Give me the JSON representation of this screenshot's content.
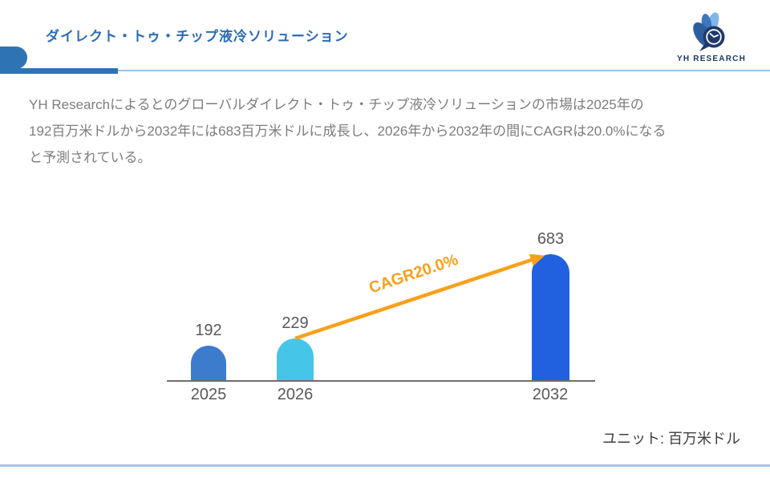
{
  "header": {
    "title": "ダイレクト・トゥ・チップ液冷ソリューション",
    "logo_text": "YH RESEARCH"
  },
  "description": {
    "lines": [
      "YH Researchによるとのグローバルダイレクト・トゥ・チップ液冷ソリューションの市場は2025年の",
      "192百万米ドルから2032年には683百万米ドルに成長し、2026年から2032年の間にCAGRは20.0%になる",
      "と予測されている。"
    ]
  },
  "chart_data": {
    "type": "bar",
    "categories": [
      "2025",
      "2026",
      "2032"
    ],
    "values": [
      192,
      229,
      683
    ],
    "annotation": "CAGR20.0%",
    "unit_label": "ユニット: 百万米ドル",
    "ylabel": "",
    "xlabel": "",
    "ylim": [
      0,
      730
    ],
    "grid": false,
    "legend": false,
    "colors": {
      "bars": [
        "#3D7BCC",
        "#45C6E8",
        "#2161DF"
      ],
      "arrow": "#F9A01B",
      "axis": "#6E6E6E",
      "labels": "#595959"
    }
  },
  "theme": {
    "title_blue": "#2B6CB8",
    "header_bar_blue": "#2E74B5",
    "rule_light_blue": "#9DC3E6",
    "body_gray": "#7D7D7D",
    "logo_navy": "#1F3864"
  }
}
